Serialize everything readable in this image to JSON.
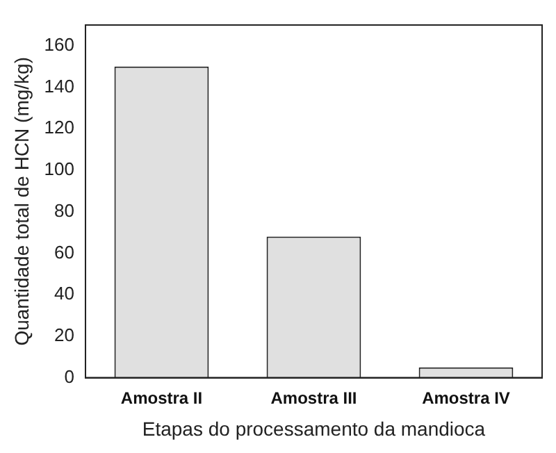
{
  "chart_data": {
    "type": "bar",
    "xlabel": "Etapas do processamento da mandioca",
    "ylabel": "Quantidade total de HCN (mg/kg)",
    "categories": [
      "Amostra II",
      "Amostra III",
      "Amostra IV"
    ],
    "values": [
      150,
      68,
      5
    ],
    "color": "#e0e0e0",
    "ylim": [
      0,
      170
    ],
    "yticks": [
      0,
      20,
      40,
      60,
      80,
      100,
      120,
      140,
      160
    ],
    "grid": false,
    "legend": false
  }
}
